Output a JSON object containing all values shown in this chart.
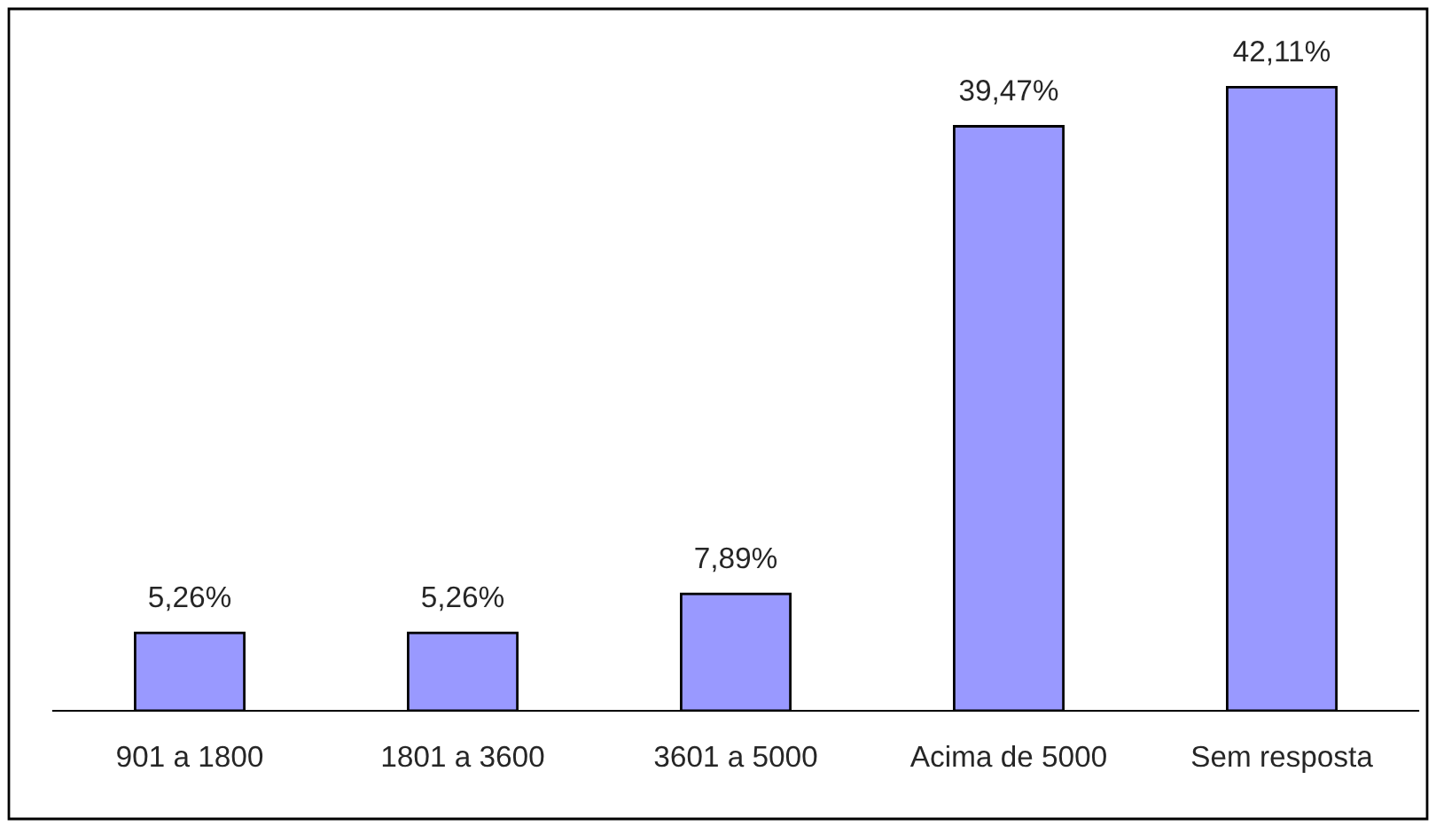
{
  "chart_data": {
    "type": "bar",
    "categories": [
      "901 a 1800",
      "1801 a 3600",
      "3601 a 5000",
      "Acima de 5000",
      "Sem resposta"
    ],
    "values": [
      5.26,
      5.26,
      7.89,
      39.47,
      42.11
    ],
    "value_labels": [
      "5,26%",
      "5,26%",
      "7,89%",
      "39,47%",
      "42,11%"
    ],
    "color": "#9999ff"
  }
}
